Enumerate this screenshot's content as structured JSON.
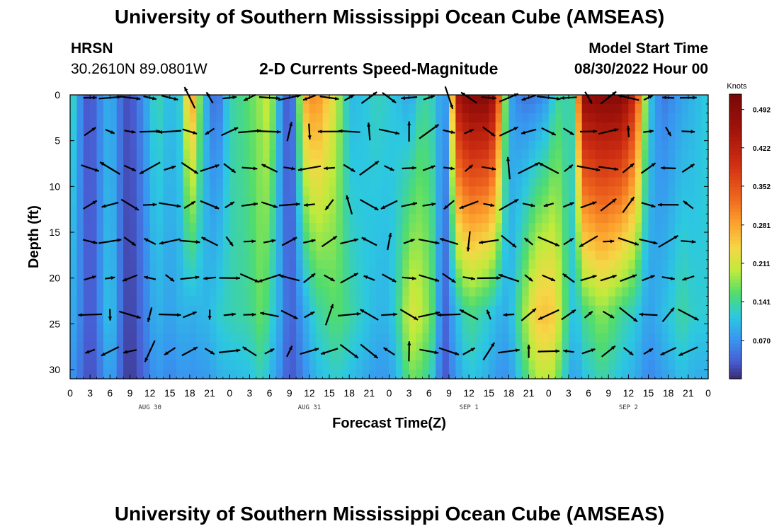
{
  "page": {
    "title_top": "University of Southern Mississippi Ocean Cube (AMSEAS)",
    "title_bottom": "University of Southern Mississippi Ocean Cube (AMSEAS)",
    "station": "HRSN",
    "coords": "30.2610N  89.0801W",
    "model_start_label": "Model Start Time",
    "model_start_value": "08/30/2022 Hour 00"
  },
  "chart_data": {
    "type": "heatmap",
    "title": "2-D Currents Speed-Magnitude",
    "xlabel": "Forecast Time(Z)",
    "ylabel": "Depth (ft)",
    "xlim": [
      0,
      96
    ],
    "ylim": [
      0,
      31
    ],
    "x_ticks": [
      0,
      3,
      6,
      9,
      12,
      15,
      18,
      21,
      24,
      27,
      30,
      33,
      36,
      39,
      42,
      45,
      48,
      51,
      54,
      57,
      60,
      63,
      66,
      69,
      72,
      75,
      78,
      81,
      84,
      87,
      90,
      93,
      96
    ],
    "x_tick_labels": [
      "0",
      "3",
      "6",
      "9",
      "12",
      "15",
      "18",
      "21",
      "0",
      "3",
      "6",
      "9",
      "12",
      "15",
      "18",
      "21",
      "0",
      "3",
      "6",
      "9",
      "12",
      "15",
      "18",
      "21",
      "0",
      "3",
      "6",
      "9",
      "12",
      "15",
      "18",
      "21",
      "0"
    ],
    "y_ticks": [
      0,
      5,
      10,
      15,
      20,
      25,
      30
    ],
    "y_tick_labels": [
      "0",
      "5",
      "10",
      "15",
      "20",
      "25",
      "30"
    ],
    "date_labels": [
      {
        "x": 12,
        "text": "AUG 30"
      },
      {
        "x": 36,
        "text": "AUG 31"
      },
      {
        "x": 60,
        "text": "SEP 1"
      },
      {
        "x": 84,
        "text": "SEP 2"
      }
    ],
    "colorbar": {
      "unit": "Knots",
      "min": 0,
      "max": 0.52,
      "ticks": [
        0.07,
        0.141,
        0.211,
        0.281,
        0.352,
        0.422,
        0.492
      ],
      "tick_labels": [
        "0.070",
        "0.141",
        "0.211",
        "0.281",
        "0.352",
        "0.422",
        "0.492"
      ]
    },
    "speed_profile_by_hour": [
      {
        "t": 0,
        "surface": 0.15,
        "bottom": 0.1
      },
      {
        "t": 2,
        "surface": 0.04,
        "bottom": 0.05
      },
      {
        "t": 3,
        "surface": 0.02,
        "bottom": 0.02
      },
      {
        "t": 4,
        "surface": 0.05,
        "bottom": 0.05
      },
      {
        "t": 6,
        "surface": 0.1,
        "bottom": 0.12
      },
      {
        "t": 8,
        "surface": 0.03,
        "bottom": 0.03
      },
      {
        "t": 9,
        "surface": 0.02,
        "bottom": 0.01
      },
      {
        "t": 11,
        "surface": 0.07,
        "bottom": 0.05
      },
      {
        "t": 13,
        "surface": 0.14,
        "bottom": 0.1
      },
      {
        "t": 15,
        "surface": 0.1,
        "bottom": 0.08
      },
      {
        "t": 17,
        "surface": 0.13,
        "bottom": 0.1
      },
      {
        "t": 18,
        "surface": 0.33,
        "bottom": 0.09
      },
      {
        "t": 20,
        "surface": 0.12,
        "bottom": 0.1
      },
      {
        "t": 21,
        "surface": 0.07,
        "bottom": 0.1
      },
      {
        "t": 22,
        "surface": 0.03,
        "bottom": 0.12
      },
      {
        "t": 24,
        "surface": 0.13,
        "bottom": 0.13
      },
      {
        "t": 27,
        "surface": 0.16,
        "bottom": 0.14
      },
      {
        "t": 29,
        "surface": 0.19,
        "bottom": 0.17
      },
      {
        "t": 30,
        "surface": 0.22,
        "bottom": 0.13
      },
      {
        "t": 31,
        "surface": 0.13,
        "bottom": 0.11
      },
      {
        "t": 32,
        "surface": 0.05,
        "bottom": 0.07
      },
      {
        "t": 33,
        "surface": 0.02,
        "bottom": 0.03
      },
      {
        "t": 34,
        "surface": 0.08,
        "bottom": 0.05
      },
      {
        "t": 35,
        "surface": 0.27,
        "bottom": 0.08
      },
      {
        "t": 37,
        "surface": 0.31,
        "bottom": 0.13
      },
      {
        "t": 39,
        "surface": 0.24,
        "bottom": 0.15
      },
      {
        "t": 40,
        "surface": 0.21,
        "bottom": 0.16
      },
      {
        "t": 42,
        "surface": 0.1,
        "bottom": 0.14
      },
      {
        "t": 44,
        "surface": 0.11,
        "bottom": 0.12
      },
      {
        "t": 46,
        "surface": 0.13,
        "bottom": 0.1
      },
      {
        "t": 48,
        "surface": 0.12,
        "bottom": 0.1
      },
      {
        "t": 50,
        "surface": 0.1,
        "bottom": 0.16
      },
      {
        "t": 51,
        "surface": 0.08,
        "bottom": 0.22
      },
      {
        "t": 53,
        "surface": 0.14,
        "bottom": 0.2
      },
      {
        "t": 55,
        "surface": 0.12,
        "bottom": 0.14
      },
      {
        "t": 56,
        "surface": 0.06,
        "bottom": 0.02
      },
      {
        "t": 57,
        "surface": 0.1,
        "bottom": 0.06
      },
      {
        "t": 58,
        "surface": 0.44,
        "bottom": 0.1
      },
      {
        "t": 60,
        "surface": 0.5,
        "bottom": 0.15
      },
      {
        "t": 63,
        "surface": 0.5,
        "bottom": 0.12
      },
      {
        "t": 64,
        "surface": 0.43,
        "bottom": 0.1
      },
      {
        "t": 66,
        "surface": 0.09,
        "bottom": 0.09
      },
      {
        "t": 68,
        "surface": 0.05,
        "bottom": 0.17
      },
      {
        "t": 70,
        "surface": 0.05,
        "bottom": 0.25
      },
      {
        "t": 72,
        "surface": 0.08,
        "bottom": 0.26
      },
      {
        "t": 73,
        "surface": 0.14,
        "bottom": 0.24
      },
      {
        "t": 75,
        "surface": 0.13,
        "bottom": 0.13
      },
      {
        "t": 76,
        "surface": 0.15,
        "bottom": 0.1
      },
      {
        "t": 77,
        "surface": 0.48,
        "bottom": 0.14
      },
      {
        "t": 80,
        "surface": 0.5,
        "bottom": 0.18
      },
      {
        "t": 83,
        "surface": 0.5,
        "bottom": 0.14
      },
      {
        "t": 85,
        "surface": 0.4,
        "bottom": 0.12
      },
      {
        "t": 87,
        "surface": 0.12,
        "bottom": 0.08
      },
      {
        "t": 89,
        "surface": 0.05,
        "bottom": 0.1
      },
      {
        "t": 92,
        "surface": 0.08,
        "bottom": 0.14
      },
      {
        "t": 94,
        "surface": 0.1,
        "bottom": 0.12
      },
      {
        "t": 96,
        "surface": 0.12,
        "bottom": 0.12
      }
    ],
    "vector_depths": [
      0,
      4,
      8,
      12,
      16,
      20,
      24,
      28
    ],
    "vector_times": [
      3,
      12,
      24,
      36,
      48,
      60,
      72,
      84,
      93
    ]
  },
  "colors": {
    "background": "#ffffff",
    "arrow": "#000000"
  }
}
